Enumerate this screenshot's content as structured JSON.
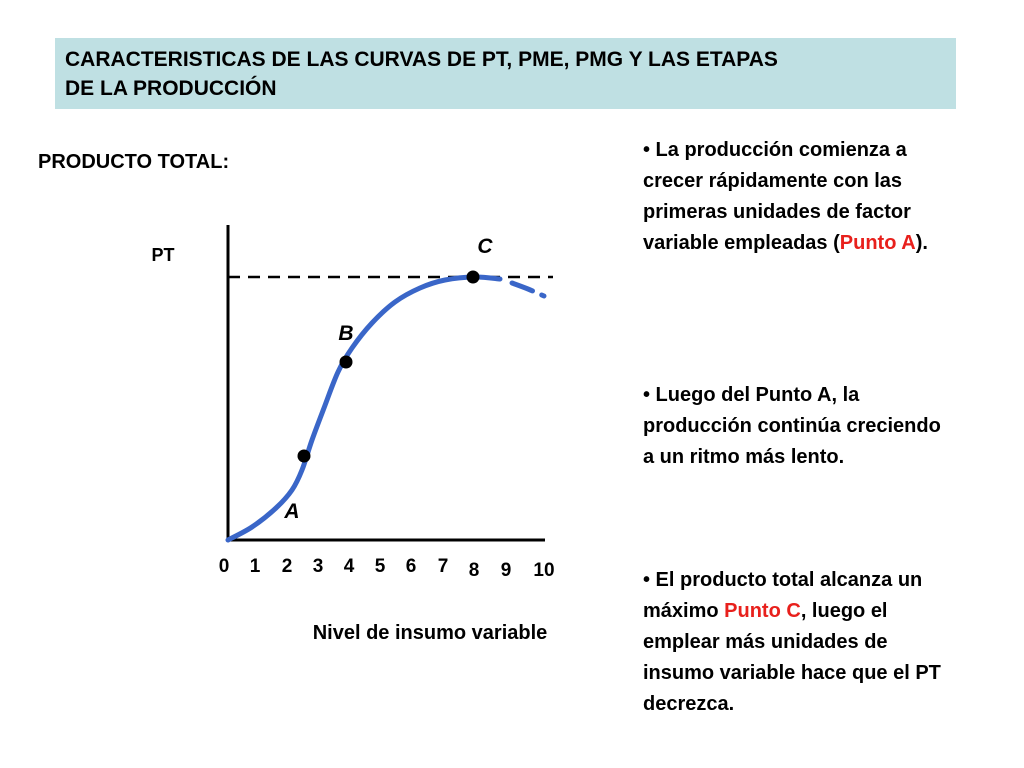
{
  "title": {
    "line1": "CARACTERISTICAS DE LAS CURVAS DE PT, PME, PMG Y LAS ETAPAS",
    "line2": "DE LA PRODUCCIÓN"
  },
  "section_heading": "PRODUCTO TOTAL:",
  "colors": {
    "curve": "#3a66c8",
    "highlight": "#e8201c",
    "title_bg": "#bfe0e3"
  },
  "chart_data": {
    "type": "line",
    "ylabel": "PT",
    "xlabel": "Nivel de insumo variable",
    "x_ticks": [
      "0",
      "1",
      "2",
      "3",
      "4",
      "5",
      "6",
      "7",
      "8",
      "9",
      "10"
    ],
    "xlim": [
      0,
      10
    ],
    "ylim": [
      0,
      1.1
    ],
    "series": [
      {
        "x": [
          0,
          0.5,
          1,
          1.5,
          2,
          2.5,
          3,
          3.5,
          4,
          4.5,
          5,
          5.5,
          6,
          6.5,
          7,
          7.5
        ],
        "y": [
          0,
          0.06,
          0.12,
          0.21,
          0.34,
          0.55,
          0.74,
          0.86,
          0.93,
          0.97,
          0.99,
          1.0,
          0.995,
          0.97,
          0.95,
          0.93
        ],
        "style": "solid"
      },
      {
        "x": [
          7.5,
          8,
          8.5,
          9,
          9.5,
          10
        ],
        "y": [
          0.93,
          0.9,
          0.86,
          0.8,
          0.74,
          0.67
        ],
        "style": "dashed"
      }
    ],
    "points": [
      {
        "label": "A",
        "x": 2.4,
        "y": 0.23
      },
      {
        "label": "B",
        "x": 3.7,
        "y": 0.57
      },
      {
        "label": "C",
        "x": 7.8,
        "y": 0.86
      }
    ],
    "reference_line": {
      "y": 0.86,
      "style": "dashed"
    }
  },
  "bullets": [
    {
      "parts": [
        {
          "text": "•  La producción comienza a crecer rápidamente con las primeras unidades de factor variable empleadas ("
        },
        {
          "text": "Punto A",
          "highlight": true
        },
        {
          "text": ")."
        }
      ]
    },
    {
      "parts": [
        {
          "text": "• Luego del Punto A, la producción continúa creciendo a un ritmo más lento."
        }
      ]
    },
    {
      "parts": [
        {
          "text": "• El producto total alcanza un máximo "
        },
        {
          "text": "Punto C",
          "highlight": true
        },
        {
          "text": ", luego el emplear más unidades de insumo variable hace que el PT decrezca."
        }
      ]
    }
  ]
}
